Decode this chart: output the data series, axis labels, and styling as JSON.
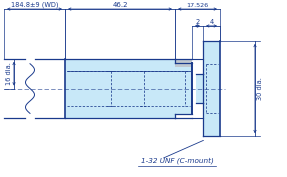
{
  "bg_color": "#ffffff",
  "line_color": "#1a3a8c",
  "body_fill": "#c8e8f8",
  "gray_fill": "#c0c8d0",
  "text_color": "#1a3a8c",
  "title_text": "1-32 UNF (C-mount)",
  "dim_wd": "184.8±9 (WD)",
  "dim_462": "46.2",
  "dim_17526": "17.526",
  "dim_2": "2",
  "dim_4": "4",
  "dim_16": "16 dia.",
  "dim_30": "30 dia.",
  "figsize": [
    2.87,
    1.77
  ],
  "dpi": 100
}
